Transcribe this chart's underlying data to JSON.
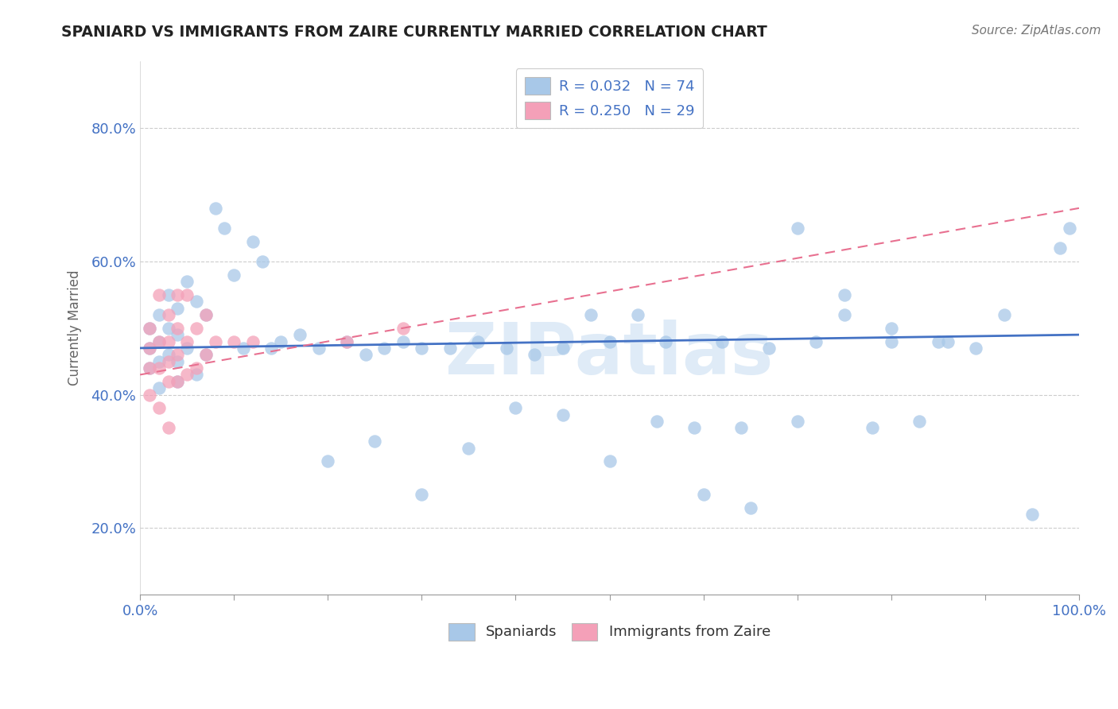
{
  "title": "SPANIARD VS IMMIGRANTS FROM ZAIRE CURRENTLY MARRIED CORRELATION CHART",
  "source_text": "Source: ZipAtlas.com",
  "ylabel": "Currently Married",
  "legend_label_1": "Spaniards",
  "legend_label_2": "Immigrants from Zaire",
  "r1": 0.032,
  "n1": 74,
  "r2": 0.25,
  "n2": 29,
  "color1": "#a8c8e8",
  "color2": "#f4a0b8",
  "line1_color": "#4472c4",
  "line2_color": "#e87090",
  "watermark": "ZIPatlas",
  "xlim": [
    0.0,
    1.0
  ],
  "ylim": [
    0.1,
    0.9
  ],
  "xticks": [
    0.0,
    0.2,
    0.4,
    0.6,
    0.8,
    1.0
  ],
  "yticks": [
    0.2,
    0.4,
    0.6,
    0.8
  ],
  "xticklabels": [
    "0.0%",
    "",
    "",
    "",
    "",
    "100.0%"
  ],
  "yticklabels": [
    "20.0%",
    "40.0%",
    "60.0%",
    "80.0%"
  ],
  "blue_points_x": [
    0.01,
    0.01,
    0.01,
    0.02,
    0.02,
    0.02,
    0.02,
    0.03,
    0.03,
    0.03,
    0.04,
    0.04,
    0.04,
    0.04,
    0.05,
    0.05,
    0.06,
    0.06,
    0.07,
    0.07,
    0.08,
    0.09,
    0.1,
    0.11,
    0.12,
    0.13,
    0.14,
    0.15,
    0.17,
    0.19,
    0.22,
    0.24,
    0.26,
    0.28,
    0.3,
    0.33,
    0.36,
    0.39,
    0.42,
    0.45,
    0.48,
    0.5,
    0.53,
    0.56,
    0.59,
    0.62,
    0.64,
    0.67,
    0.7,
    0.72,
    0.75,
    0.78,
    0.8,
    0.83,
    0.86,
    0.89,
    0.92,
    0.95,
    0.98,
    0.99,
    0.2,
    0.25,
    0.3,
    0.35,
    0.4,
    0.45,
    0.5,
    0.55,
    0.6,
    0.65,
    0.7,
    0.75,
    0.8,
    0.85
  ],
  "blue_points_y": [
    0.47,
    0.5,
    0.44,
    0.52,
    0.48,
    0.45,
    0.41,
    0.55,
    0.5,
    0.46,
    0.53,
    0.49,
    0.45,
    0.42,
    0.57,
    0.47,
    0.54,
    0.43,
    0.52,
    0.46,
    0.68,
    0.65,
    0.58,
    0.47,
    0.63,
    0.6,
    0.47,
    0.48,
    0.49,
    0.47,
    0.48,
    0.46,
    0.47,
    0.48,
    0.47,
    0.47,
    0.48,
    0.47,
    0.46,
    0.47,
    0.52,
    0.48,
    0.52,
    0.48,
    0.35,
    0.48,
    0.35,
    0.47,
    0.36,
    0.48,
    0.52,
    0.35,
    0.5,
    0.36,
    0.48,
    0.47,
    0.52,
    0.22,
    0.62,
    0.65,
    0.3,
    0.33,
    0.25,
    0.32,
    0.38,
    0.37,
    0.3,
    0.36,
    0.25,
    0.23,
    0.65,
    0.55,
    0.48,
    0.48
  ],
  "pink_points_x": [
    0.01,
    0.01,
    0.01,
    0.01,
    0.02,
    0.02,
    0.02,
    0.02,
    0.03,
    0.03,
    0.03,
    0.03,
    0.03,
    0.04,
    0.04,
    0.04,
    0.04,
    0.05,
    0.05,
    0.05,
    0.06,
    0.06,
    0.07,
    0.07,
    0.08,
    0.1,
    0.12,
    0.22,
    0.28
  ],
  "pink_points_y": [
    0.47,
    0.5,
    0.44,
    0.4,
    0.55,
    0.48,
    0.44,
    0.38,
    0.52,
    0.48,
    0.45,
    0.42,
    0.35,
    0.55,
    0.5,
    0.46,
    0.42,
    0.55,
    0.48,
    0.43,
    0.5,
    0.44,
    0.52,
    0.46,
    0.48,
    0.48,
    0.48,
    0.48,
    0.5
  ]
}
